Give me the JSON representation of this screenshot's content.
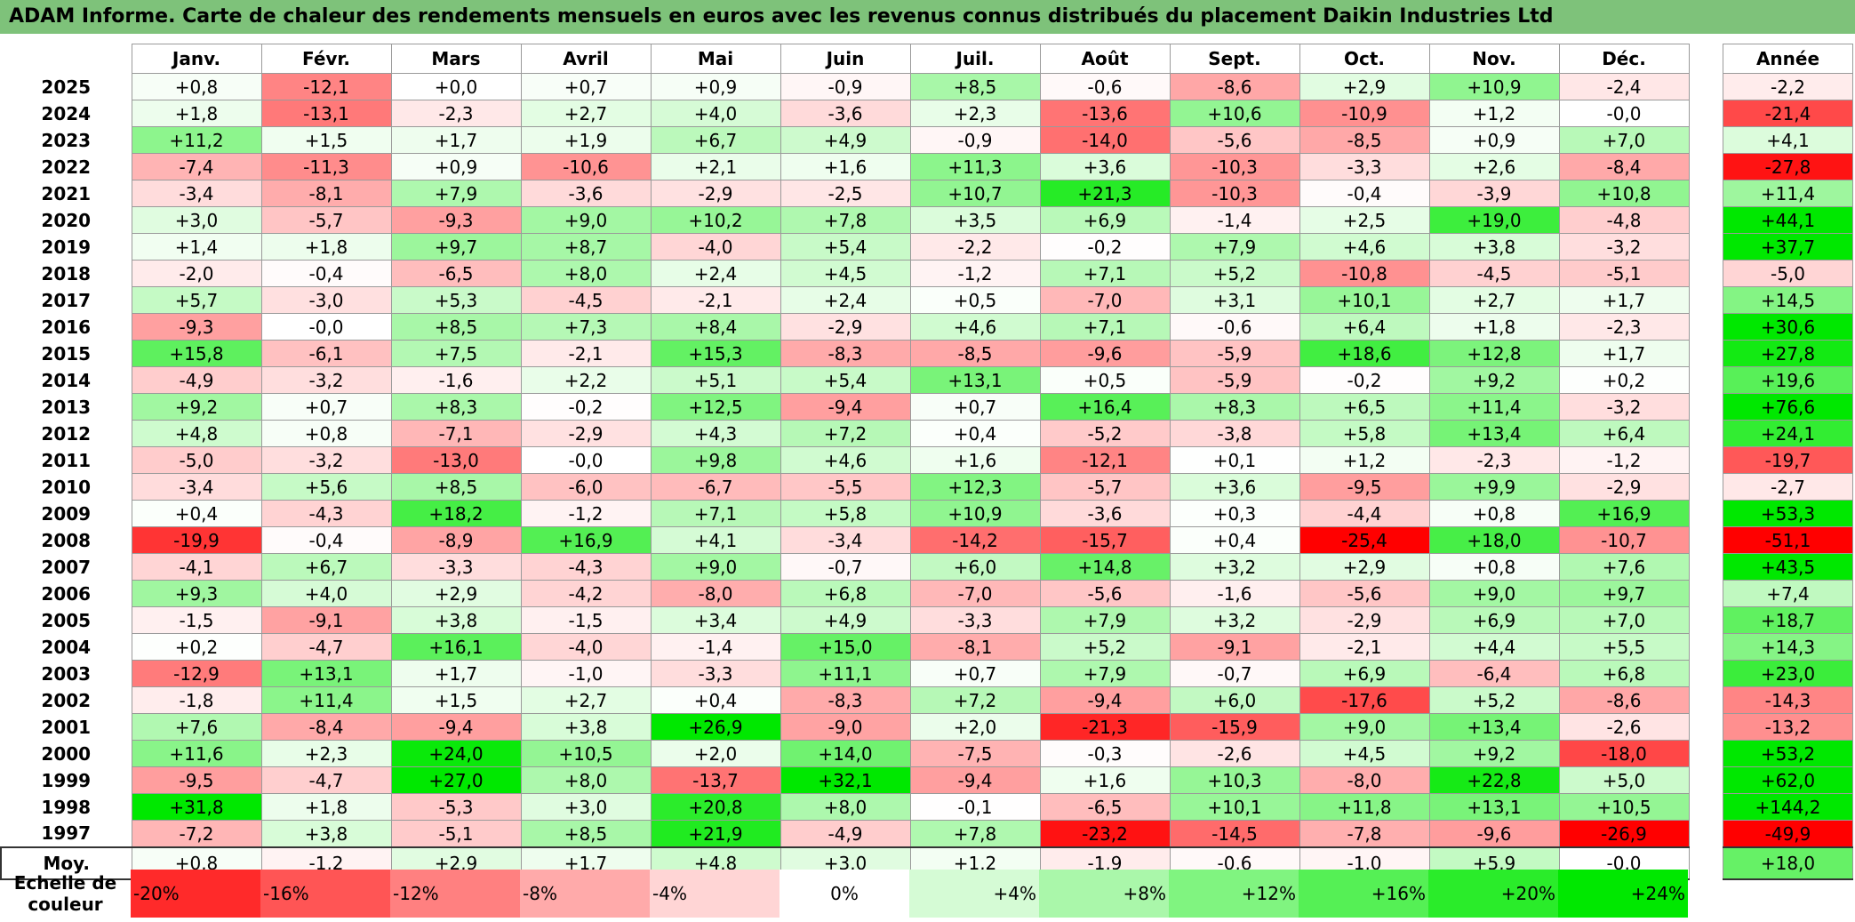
{
  "title": "ADAM Informe. Carte de chaleur des rendements mensuels en euros avec les revenus connus distribués du placement Daikin Industries Ltd",
  "chart_data": {
    "type": "heatmap",
    "months": [
      "Janv.",
      "Févr.",
      "Mars",
      "Avril",
      "Mai",
      "Juin",
      "Juil.",
      "Août",
      "Sept.",
      "Oct.",
      "Nov.",
      "Déc."
    ],
    "annual_header": "Année",
    "rows": [
      {
        "year": "2025",
        "values": [
          "+0,8",
          "-12,1",
          "+0,0",
          "+0,7",
          "+0,9",
          "-0,9",
          "+8,5",
          "-0,6",
          "-8,6",
          "+2,9",
          "+10,9",
          "-2,4"
        ],
        "annual": "-2,2"
      },
      {
        "year": "2024",
        "values": [
          "+1,8",
          "-13,1",
          "-2,3",
          "+2,7",
          "+4,0",
          "-3,6",
          "+2,3",
          "-13,6",
          "+10,6",
          "-10,9",
          "+1,2",
          "-0,0"
        ],
        "annual": "-21,4"
      },
      {
        "year": "2023",
        "values": [
          "+11,2",
          "+1,5",
          "+1,7",
          "+1,9",
          "+6,7",
          "+4,9",
          "-0,9",
          "-14,0",
          "-5,6",
          "-8,5",
          "+0,9",
          "+7,0"
        ],
        "annual": "+4,1"
      },
      {
        "year": "2022",
        "values": [
          "-7,4",
          "-11,3",
          "+0,9",
          "-10,6",
          "+2,1",
          "+1,6",
          "+11,3",
          "+3,6",
          "-10,3",
          "-3,3",
          "+2,6",
          "-8,4"
        ],
        "annual": "-27,8"
      },
      {
        "year": "2021",
        "values": [
          "-3,4",
          "-8,1",
          "+7,9",
          "-3,6",
          "-2,9",
          "-2,5",
          "+10,7",
          "+21,3",
          "-10,3",
          "-0,4",
          "-3,9",
          "+10,8"
        ],
        "annual": "+11,4"
      },
      {
        "year": "2020",
        "values": [
          "+3,0",
          "-5,7",
          "-9,3",
          "+9,0",
          "+10,2",
          "+7,8",
          "+3,5",
          "+6,9",
          "-1,4",
          "+2,5",
          "+19,0",
          "-4,8"
        ],
        "annual": "+44,1"
      },
      {
        "year": "2019",
        "values": [
          "+1,4",
          "+1,8",
          "+9,7",
          "+8,7",
          "-4,0",
          "+5,4",
          "-2,2",
          "-0,2",
          "+7,9",
          "+4,6",
          "+3,8",
          "-3,2"
        ],
        "annual": "+37,7"
      },
      {
        "year": "2018",
        "values": [
          "-2,0",
          "-0,4",
          "-6,5",
          "+8,0",
          "+2,4",
          "+4,5",
          "-1,2",
          "+7,1",
          "+5,2",
          "-10,8",
          "-4,5",
          "-5,1"
        ],
        "annual": "-5,0"
      },
      {
        "year": "2017",
        "values": [
          "+5,7",
          "-3,0",
          "+5,3",
          "-4,5",
          "-2,1",
          "+2,4",
          "+0,5",
          "-7,0",
          "+3,1",
          "+10,1",
          "+2,7",
          "+1,7"
        ],
        "annual": "+14,5"
      },
      {
        "year": "2016",
        "values": [
          "-9,3",
          "-0,0",
          "+8,5",
          "+7,3",
          "+8,4",
          "-2,9",
          "+4,6",
          "+7,1",
          "-0,6",
          "+6,4",
          "+1,8",
          "-2,3"
        ],
        "annual": "+30,6"
      },
      {
        "year": "2015",
        "values": [
          "+15,8",
          "-6,1",
          "+7,5",
          "-2,1",
          "+15,3",
          "-8,3",
          "-8,5",
          "-9,6",
          "-5,9",
          "+18,6",
          "+12,8",
          "+1,7"
        ],
        "annual": "+27,8"
      },
      {
        "year": "2014",
        "values": [
          "-4,9",
          "-3,2",
          "-1,6",
          "+2,2",
          "+5,1",
          "+5,4",
          "+13,1",
          "+0,5",
          "-5,9",
          "-0,2",
          "+9,2",
          "+0,2"
        ],
        "annual": "+19,6"
      },
      {
        "year": "2013",
        "values": [
          "+9,2",
          "+0,7",
          "+8,3",
          "-0,2",
          "+12,5",
          "-9,4",
          "+0,7",
          "+16,4",
          "+8,3",
          "+6,5",
          "+11,4",
          "-3,2"
        ],
        "annual": "+76,6"
      },
      {
        "year": "2012",
        "values": [
          "+4,8",
          "+0,8",
          "-7,1",
          "-2,9",
          "+4,3",
          "+7,2",
          "+0,4",
          "-5,2",
          "-3,8",
          "+5,8",
          "+13,4",
          "+6,4"
        ],
        "annual": "+24,1"
      },
      {
        "year": "2011",
        "values": [
          "-5,0",
          "-3,2",
          "-13,0",
          "-0,0",
          "+9,8",
          "+4,6",
          "+1,6",
          "-12,1",
          "+0,1",
          "+1,2",
          "-2,3",
          "-1,2"
        ],
        "annual": "-19,7"
      },
      {
        "year": "2010",
        "values": [
          "-3,4",
          "+5,6",
          "+8,5",
          "-6,0",
          "-6,7",
          "-5,5",
          "+12,3",
          "-5,7",
          "+3,6",
          "-9,5",
          "+9,9",
          "-2,9"
        ],
        "annual": "-2,7"
      },
      {
        "year": "2009",
        "values": [
          "+0,4",
          "-4,3",
          "+18,2",
          "-1,2",
          "+7,1",
          "+5,8",
          "+10,9",
          "-3,6",
          "+0,3",
          "-4,4",
          "+0,8",
          "+16,9"
        ],
        "annual": "+53,3"
      },
      {
        "year": "2008",
        "values": [
          "-19,9",
          "-0,4",
          "-8,9",
          "+16,9",
          "+4,1",
          "-3,4",
          "-14,2",
          "-15,7",
          "+0,4",
          "-25,4",
          "+18,0",
          "-10,7"
        ],
        "annual": "-51,1"
      },
      {
        "year": "2007",
        "values": [
          "-4,1",
          "+6,7",
          "-3,3",
          "-4,3",
          "+9,0",
          "-0,7",
          "+6,0",
          "+14,8",
          "+3,2",
          "+2,9",
          "+0,8",
          "+7,6"
        ],
        "annual": "+43,5"
      },
      {
        "year": "2006",
        "values": [
          "+9,3",
          "+4,0",
          "+2,9",
          "-4,2",
          "-8,0",
          "+6,8",
          "-7,0",
          "-5,6",
          "-1,6",
          "-5,6",
          "+9,0",
          "+9,7"
        ],
        "annual": "+7,4"
      },
      {
        "year": "2005",
        "values": [
          "-1,5",
          "-9,1",
          "+3,8",
          "-1,5",
          "+3,4",
          "+4,9",
          "-3,3",
          "+7,9",
          "+3,2",
          "-2,9",
          "+6,9",
          "+7,0"
        ],
        "annual": "+18,7"
      },
      {
        "year": "2004",
        "values": [
          "+0,2",
          "-4,7",
          "+16,1",
          "-4,0",
          "-1,4",
          "+15,0",
          "-8,1",
          "+5,2",
          "-9,1",
          "-2,1",
          "+4,4",
          "+5,5"
        ],
        "annual": "+14,3"
      },
      {
        "year": "2003",
        "values": [
          "-12,9",
          "+13,1",
          "+1,7",
          "-1,0",
          "-3,3",
          "+11,1",
          "+0,7",
          "+7,9",
          "-0,7",
          "+6,9",
          "-6,4",
          "+6,8"
        ],
        "annual": "+23,0"
      },
      {
        "year": "2002",
        "values": [
          "-1,8",
          "+11,4",
          "+1,5",
          "+2,7",
          "+0,4",
          "-8,3",
          "+7,2",
          "-9,4",
          "+6,0",
          "-17,6",
          "+5,2",
          "-8,6"
        ],
        "annual": "-14,3"
      },
      {
        "year": "2001",
        "values": [
          "+7,6",
          "-8,4",
          "-9,4",
          "+3,8",
          "+26,9",
          "-9,0",
          "+2,0",
          "-21,3",
          "-15,9",
          "+9,0",
          "+13,4",
          "-2,6"
        ],
        "annual": "-13,2"
      },
      {
        "year": "2000",
        "values": [
          "+11,6",
          "+2,3",
          "+24,0",
          "+10,5",
          "+2,0",
          "+14,0",
          "-7,5",
          "-0,3",
          "-2,6",
          "+4,5",
          "+9,2",
          "-18,0"
        ],
        "annual": "+53,2"
      },
      {
        "year": "1999",
        "values": [
          "-9,5",
          "-4,7",
          "+27,0",
          "+8,0",
          "-13,7",
          "+32,1",
          "-9,4",
          "+1,6",
          "+10,3",
          "-8,0",
          "+22,8",
          "+5,0"
        ],
        "annual": "+62,0"
      },
      {
        "year": "1998",
        "values": [
          "+31,8",
          "+1,8",
          "-5,3",
          "+3,0",
          "+20,8",
          "+8,0",
          "-0,1",
          "-6,5",
          "+10,1",
          "+11,8",
          "+13,1",
          "+10,5"
        ],
        "annual": "+144,2"
      },
      {
        "year": "1997",
        "values": [
          "-7,2",
          "+3,8",
          "-5,1",
          "+8,5",
          "+21,9",
          "-4,9",
          "+7,8",
          "-23,2",
          "-14,5",
          "-7,8",
          "-9,6",
          "-26,9"
        ],
        "annual": "-49,9"
      }
    ],
    "average": {
      "label": "Moy.",
      "values": [
        "+0,8",
        "-1,2",
        "+2,9",
        "+1,7",
        "+4,8",
        "+3,0",
        "+1,2",
        "-1,9",
        "-0,6",
        "-1,0",
        "+5,9",
        "-0,0"
      ],
      "annual": "+18,0"
    },
    "legend": {
      "label": "Echelle de couleur",
      "steps": [
        "-20%",
        "-16%",
        "-12%",
        "-8%",
        "-4%",
        "0%",
        "+4%",
        "+8%",
        "+12%",
        "+16%",
        "+20%",
        "+24%"
      ]
    },
    "colors": {
      "negative_max": "#ff0000",
      "neutral": "#ffffff",
      "positive_max": "#00e800",
      "title_bg": "#7ec27a"
    }
  }
}
